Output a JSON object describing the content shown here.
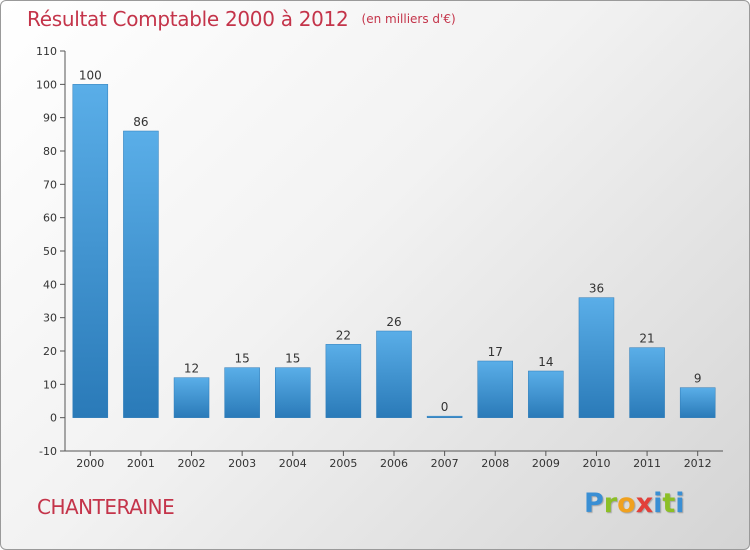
{
  "title": "Résultat Comptable 2000 à 2012",
  "unit": "(en milliers d'€)",
  "commune": "CHANTERAINE",
  "brand": "Proxiti",
  "colors": {
    "title": "#c4344a",
    "bar_light": "#5aaee8",
    "bar_dark": "#2a7ab8",
    "axis": "#555555"
  },
  "chart_data": {
    "type": "bar",
    "title": "Résultat Comptable 2000 à 2012",
    "subtitle": "(en milliers d'€)",
    "xlabel": "",
    "ylabel": "",
    "categories": [
      "2000",
      "2001",
      "2002",
      "2003",
      "2004",
      "2005",
      "2006",
      "2007",
      "2008",
      "2009",
      "2010",
      "2011",
      "2012"
    ],
    "values": [
      100,
      86,
      12,
      15,
      15,
      22,
      26,
      0,
      17,
      14,
      36,
      21,
      9
    ],
    "ylim": [
      -10,
      110
    ],
    "yticks": [
      -10,
      0,
      10,
      20,
      30,
      40,
      50,
      60,
      70,
      80,
      90,
      100,
      110
    ],
    "grid": false,
    "legend": "none"
  }
}
